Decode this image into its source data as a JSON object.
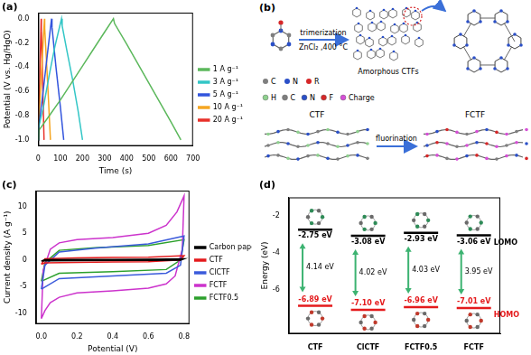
{
  "chart_data": [
    {
      "panel_label": "(a)",
      "type": "line",
      "x_label": "Time (s)",
      "y_label": "Potential (V vs. Hg/HgO)",
      "xlim": [
        0,
        700
      ],
      "xticks": [
        0,
        100,
        200,
        300,
        400,
        500,
        600,
        700
      ],
      "ylim": [
        -1.05,
        0.05
      ],
      "yticks": [
        {
          "value": -1.0,
          "label": "-1.0"
        },
        -0.8,
        -0.6,
        -0.4,
        -0.2,
        {
          "value": 0,
          "label": "0.0"
        }
      ],
      "grid": false,
      "legend": "right",
      "series": [
        {
          "name": "1 A g⁻¹",
          "color": "#5cb85c",
          "x": [
            0,
            3,
            50,
            100,
            150,
            200,
            250,
            300,
            340,
            345,
            400,
            450,
            500,
            550,
            600,
            645
          ],
          "values": [
            -1.0,
            -0.92,
            -0.8,
            -0.67,
            -0.53,
            -0.39,
            -0.25,
            -0.11,
            0.0,
            -0.04,
            -0.21,
            -0.37,
            -0.53,
            -0.69,
            -0.85,
            -1.0
          ]
        },
        {
          "name": "3 A g⁻¹",
          "color": "#33c6c6",
          "x": [
            0,
            1,
            25,
            50,
            75,
            105,
            108,
            130,
            155,
            180,
            200
          ],
          "values": [
            -1.0,
            -0.9,
            -0.71,
            -0.46,
            -0.23,
            0.0,
            -0.06,
            -0.27,
            -0.5,
            -0.76,
            -1.0
          ]
        },
        {
          "name": "5 A g⁻¹",
          "color": "#3355dd",
          "x": [
            0,
            1,
            20,
            40,
            60,
            62,
            80,
            100,
            115
          ],
          "values": [
            -1.0,
            -0.9,
            -0.63,
            -0.31,
            0.0,
            -0.07,
            -0.4,
            -0.73,
            -1.0
          ]
        },
        {
          "name": "10 A g⁻¹",
          "color": "#f5a623",
          "x": [
            0,
            1,
            14,
            28,
            29,
            42,
            55
          ],
          "values": [
            -1.0,
            -0.9,
            -0.45,
            0.0,
            -0.08,
            -0.52,
            -1.0
          ]
        },
        {
          "name": "20 A g⁻¹",
          "color": "#e8312a",
          "x": [
            0,
            1,
            7,
            13,
            14,
            20,
            26
          ],
          "values": [
            -1.0,
            -0.88,
            -0.45,
            0.0,
            -0.1,
            -0.55,
            -1.0
          ]
        }
      ]
    },
    {
      "panel_label": "(c)",
      "type": "line",
      "x_label": "Potential (V)",
      "y_label": "Current density (A g⁻¹)",
      "xlim": [
        -0.03,
        0.83
      ],
      "xticks": [
        {
          "value": 0,
          "label": "0.0"
        },
        0.2,
        0.4,
        0.6,
        0.8
      ],
      "ylim": [
        -12,
        13
      ],
      "yticks": [
        -10,
        -5,
        0,
        5,
        10
      ],
      "grid": false,
      "legend": "right",
      "series": [
        {
          "name": "Carbon paper",
          "color": "#000000",
          "x": [
            0,
            0.02,
            0.2,
            0.4,
            0.6,
            0.8,
            0.78,
            0.6,
            0.4,
            0.2,
            0.02,
            0
          ],
          "values": [
            -0.2,
            0.05,
            0.1,
            0.1,
            0.12,
            0.2,
            -0.05,
            -0.1,
            -0.1,
            -0.12,
            -0.15,
            -0.2
          ]
        },
        {
          "name": "CTF",
          "color": "#e41a1c",
          "x": [
            0,
            0.02,
            0.2,
            0.4,
            0.6,
            0.8,
            0.78,
            0.6,
            0.4,
            0.2,
            0.02,
            0
          ],
          "values": [
            -0.8,
            0.2,
            0.4,
            0.45,
            0.5,
            0.8,
            0.0,
            -0.35,
            -0.4,
            -0.45,
            -0.55,
            -0.8
          ]
        },
        {
          "name": "ClCTF",
          "color": "#3b5bdb",
          "x": [
            0,
            0.02,
            0.1,
            0.3,
            0.6,
            0.8,
            0.78,
            0.7,
            0.4,
            0.1,
            0
          ],
          "values": [
            -5.5,
            -1.0,
            1.5,
            2.2,
            3.0,
            4.5,
            -1.0,
            -2.5,
            -3.0,
            -3.5,
            -5.5
          ]
        },
        {
          "name": "FCTF",
          "color": "#cc33cc",
          "x": [
            0,
            0.01,
            0.05,
            0.1,
            0.2,
            0.4,
            0.6,
            0.7,
            0.76,
            0.8,
            0.79,
            0.75,
            0.7,
            0.6,
            0.4,
            0.2,
            0.1,
            0.05,
            0.02,
            0
          ],
          "values": [
            -11,
            -2,
            2,
            3.2,
            3.8,
            4.2,
            5,
            6.5,
            9,
            12,
            2,
            -3,
            -4.5,
            -5.3,
            -5.8,
            -6.2,
            -7,
            -8,
            -9.5,
            -11
          ]
        },
        {
          "name": "FCTF0.5",
          "color": "#2ca02c",
          "x": [
            0,
            0.02,
            0.1,
            0.3,
            0.6,
            0.8,
            0.78,
            0.7,
            0.4,
            0.1,
            0
          ],
          "values": [
            -4.0,
            -0.5,
            1.8,
            2.3,
            2.7,
            3.8,
            0.0,
            -1.8,
            -2.2,
            -2.5,
            -4.0
          ]
        }
      ]
    },
    {
      "panel_label": "(d)",
      "type": "levels",
      "y_label": "Energy (eV)",
      "categories": [
        "CTF",
        "ClCTF",
        "FCTF0.5",
        "FCTF"
      ],
      "ylim": [
        -8.4,
        -1.0
      ],
      "yticks": [
        -2,
        -4,
        -6
      ],
      "grid": false,
      "series": [
        {
          "name": "LOMO",
          "color": "#000000",
          "marker": "line",
          "values": [
            -2.75,
            -3.08,
            -2.93,
            -3.06
          ],
          "value_labels": [
            "-2.75 eV",
            "-3.08 eV",
            "-2.93 eV",
            "-3.06 eV"
          ]
        },
        {
          "name": "HOMO",
          "color": "#e41a1c",
          "marker": "line",
          "values": [
            -6.89,
            -7.1,
            -6.96,
            -7.01
          ],
          "value_labels": [
            "-6.89 eV",
            "-7.10 eV",
            "-6.96 eV",
            "-7.01 eV"
          ]
        }
      ],
      "gaps": [
        4.14,
        4.02,
        4.03,
        3.95
      ],
      "gap_labels": [
        "4.14 eV",
        "4.02 eV",
        "4.03 eV",
        "3.95 eV"
      ]
    }
  ],
  "diagram": {
    "panel_label": "(b)",
    "reaction": {
      "label": "trimerization",
      "conditions": "ZnCl₂ ,400 °C",
      "product": "Amorphous CTFs"
    },
    "legend_top": [
      {
        "label": "C",
        "color": "#7f7f7f"
      },
      {
        "label": "N",
        "color": "#2b50c8"
      },
      {
        "label": "R",
        "color": "#d62728"
      }
    ],
    "conversion": {
      "from": "CTF",
      "label": "fluorination",
      "to": "FCTF"
    },
    "legend_bottom": [
      {
        "label": "H",
        "color": "#8fd18f"
      },
      {
        "label": "C",
        "color": "#7f7f7f"
      },
      {
        "label": "N",
        "color": "#2b50c8"
      },
      {
        "label": "F",
        "color": "#d62728"
      },
      {
        "label": "Charge",
        "color": "#d64fd6"
      }
    ]
  }
}
